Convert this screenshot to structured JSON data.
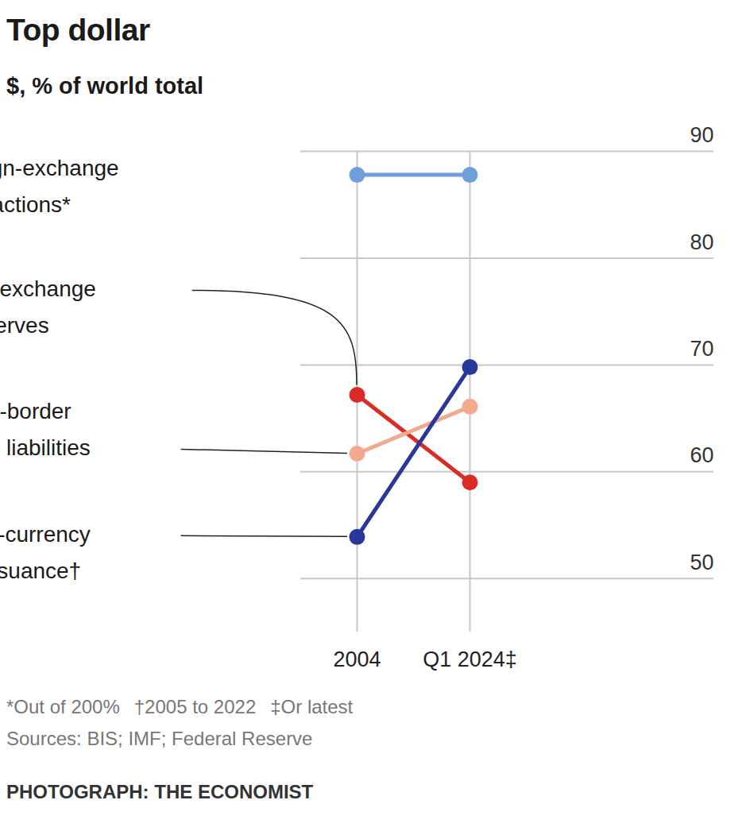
{
  "chart_data": {
    "type": "line",
    "title": "Top dollar",
    "subtitle": "$, % of world total",
    "categories": [
      "2004",
      "Q1 2024‡"
    ],
    "series": [
      {
        "name": "OTC foreign-exchange transactions*",
        "color": "#6e9fdb",
        "values": [
          87.8,
          87.8
        ]
      },
      {
        "name": "Foreign-exchange reserves",
        "color": "#db2b27",
        "values": [
          67.2,
          59.0
        ]
      },
      {
        "name": "Cross-border banking liabilities",
        "color": "#f2a98e",
        "values": [
          61.7,
          66.1
        ]
      },
      {
        "name": "Foreign-currency debt issuance†",
        "color": "#27389a",
        "values": [
          53.9,
          69.8
        ]
      }
    ],
    "ylim": [
      45,
      90
    ],
    "yticks": [
      50,
      60,
      70,
      80,
      90
    ],
    "grid": true,
    "marker": "circle",
    "footnotes": [
      "*Out of 200%",
      "†2005 to 2022",
      "‡Or latest"
    ],
    "source": "Sources: BIS; IMF; Federal Reserve",
    "credit": "PHOTOGRAPH: THE ECONOMIST"
  }
}
